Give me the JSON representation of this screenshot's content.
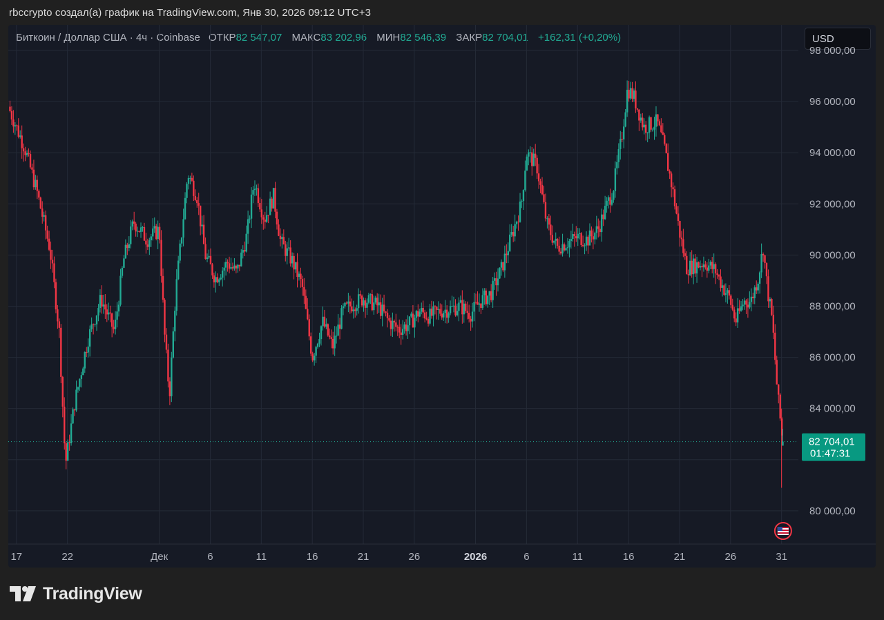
{
  "caption": "rbccrypto создал(а) график на TradingView.com, Янв 30, 2026 09:12 UTC+3",
  "legend": {
    "symbol": "Биткоин / Доллар США · 4ч · Coinbase",
    "open_label": "ОТКР",
    "open_value": "82 547,07",
    "high_label": "МАКС",
    "high_value": "83 202,96",
    "low_label": "МИН",
    "low_value": "82 546,39",
    "close_label": "ЗАКР",
    "close_value": "82 704,01",
    "change": "+162,31 (+0,20%)"
  },
  "currency": "USD",
  "price_label": {
    "price": "82 704,01",
    "countdown": "01:47:31"
  },
  "brand": "TradingView",
  "colors": {
    "up": "#22ab94",
    "down": "#f23645",
    "background": "#161a25",
    "grid": "#242a37",
    "label_bg": "#089981"
  },
  "chart_data": {
    "type": "candlestick",
    "y_ticks": [
      "80 000,00",
      "84 000,00",
      "86 000,00",
      "88 000,00",
      "90 000,00",
      "92 000,00",
      "94 000,00",
      "96 000,00",
      "98 000,00"
    ],
    "y_tick_values": [
      80000,
      84000,
      86000,
      88000,
      90000,
      92000,
      94000,
      96000,
      98000
    ],
    "ylim": [
      78700,
      99000
    ],
    "x_ticks": [
      {
        "day": 0,
        "label": "17"
      },
      {
        "day": 5,
        "label": "22"
      },
      {
        "day": 14,
        "label": "Дек"
      },
      {
        "day": 19,
        "label": "6"
      },
      {
        "day": 24,
        "label": "11"
      },
      {
        "day": 29,
        "label": "16"
      },
      {
        "day": 34,
        "label": "21"
      },
      {
        "day": 39,
        "label": "26"
      },
      {
        "day": 45,
        "label": "2026"
      },
      {
        "day": 50,
        "label": "6"
      },
      {
        "day": 55,
        "label": "11"
      },
      {
        "day": 60,
        "label": "16"
      },
      {
        "day": 65,
        "label": "21"
      },
      {
        "day": 70,
        "label": "26"
      },
      {
        "day": 75,
        "label": "31"
      }
    ],
    "x_range_days": [
      -0.8,
      75.7
    ],
    "key_closes": [
      [
        -0.8,
        95800
      ],
      [
        0.8,
        94200
      ],
      [
        2,
        92500
      ],
      [
        3.3,
        90200
      ],
      [
        4.2,
        87000
      ],
      [
        4.8,
        81800
      ],
      [
        5.7,
        84200
      ],
      [
        7,
        86700
      ],
      [
        8.3,
        88300
      ],
      [
        9.6,
        87000
      ],
      [
        10.5,
        89800
      ],
      [
        11.5,
        91300
      ],
      [
        12.8,
        90600
      ],
      [
        14,
        91000
      ],
      [
        14.5,
        87000
      ],
      [
        15,
        84500
      ],
      [
        15.6,
        88500
      ],
      [
        16.8,
        93200
      ],
      [
        17.7,
        92300
      ],
      [
        18.5,
        90000
      ],
      [
        19.5,
        89100
      ],
      [
        20.7,
        89700
      ],
      [
        21.6,
        89300
      ],
      [
        22.6,
        90800
      ],
      [
        23.3,
        92900
      ],
      [
        24.3,
        91400
      ],
      [
        25.2,
        92300
      ],
      [
        25.9,
        90500
      ],
      [
        27,
        89800
      ],
      [
        28,
        88800
      ],
      [
        29,
        86000
      ],
      [
        30,
        87400
      ],
      [
        31,
        86400
      ],
      [
        32,
        87800
      ],
      [
        33,
        88100
      ],
      [
        34,
        88300
      ],
      [
        35.5,
        88000
      ],
      [
        36.5,
        87400
      ],
      [
        37.5,
        87100
      ],
      [
        38.5,
        87300
      ],
      [
        39.5,
        87800
      ],
      [
        40.5,
        87600
      ],
      [
        41.5,
        87800
      ],
      [
        42.5,
        87900
      ],
      [
        43.5,
        88000
      ],
      [
        44.5,
        87700
      ],
      [
        45.5,
        88200
      ],
      [
        46.5,
        88500
      ],
      [
        47.5,
        89400
      ],
      [
        48.5,
        90700
      ],
      [
        49.5,
        92000
      ],
      [
        50,
        94000
      ],
      [
        51,
        93500
      ],
      [
        52,
        91200
      ],
      [
        53,
        90300
      ],
      [
        54,
        90500
      ],
      [
        55,
        90700
      ],
      [
        56,
        90600
      ],
      [
        57,
        91000
      ],
      [
        58.5,
        92600
      ],
      [
        59.3,
        94500
      ],
      [
        59.9,
        96500
      ],
      [
        60.5,
        96200
      ],
      [
        61.5,
        95000
      ],
      [
        62.8,
        95200
      ],
      [
        63.5,
        94200
      ],
      [
        64.3,
        92600
      ],
      [
        65,
        90900
      ],
      [
        65.7,
        89500
      ],
      [
        66.5,
        89600
      ],
      [
        67.5,
        89700
      ],
      [
        68.5,
        89400
      ],
      [
        69.2,
        88800
      ],
      [
        69.9,
        88300
      ],
      [
        70.5,
        87400
      ],
      [
        71.3,
        88200
      ],
      [
        72,
        88200
      ],
      [
        72.7,
        89100
      ],
      [
        73.2,
        90300
      ],
      [
        73.6,
        88700
      ],
      [
        74.1,
        87400
      ],
      [
        74.6,
        84600
      ],
      [
        75.1,
        82700
      ]
    ],
    "last_price": 82704.01
  }
}
